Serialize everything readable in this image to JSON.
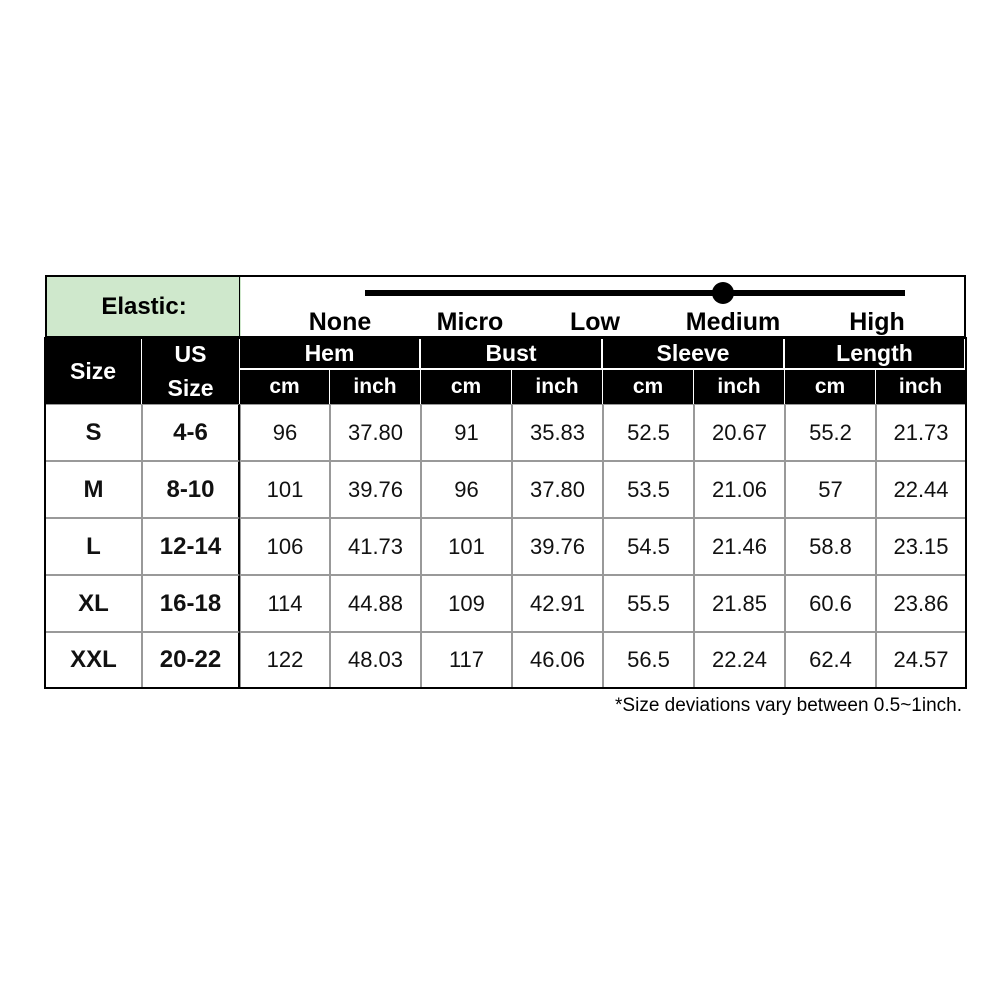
{
  "elastic": {
    "label": "Elastic:",
    "levels": [
      "None",
      "Micro",
      "Low",
      "Medium",
      "High"
    ]
  },
  "table": {
    "size_header": "Size",
    "us_size_header": "US Size",
    "groups": [
      "Hem",
      "Bust",
      "Sleeve",
      "Length"
    ],
    "units": [
      "cm",
      "inch",
      "cm",
      "inch",
      "cm",
      "inch",
      "cm",
      "inch"
    ],
    "rows": [
      [
        "S",
        "4-6",
        "96",
        "37.80",
        "91",
        "35.83",
        "52.5",
        "20.67",
        "55.2",
        "21.73"
      ],
      [
        "M",
        "8-10",
        "101",
        "39.76",
        "96",
        "37.80",
        "53.5",
        "21.06",
        "57",
        "22.44"
      ],
      [
        "L",
        "12-14",
        "106",
        "41.73",
        "101",
        "39.76",
        "54.5",
        "21.46",
        "58.8",
        "23.15"
      ],
      [
        "XL",
        "16-18",
        "114",
        "44.88",
        "109",
        "42.91",
        "55.5",
        "21.85",
        "60.6",
        "23.86"
      ],
      [
        "XXL",
        "20-22",
        "122",
        "48.03",
        "117",
        "46.06",
        "56.5",
        "22.24",
        "62.4",
        "24.57"
      ]
    ]
  },
  "note": "*Size deviations vary between 0.5~1inch."
}
